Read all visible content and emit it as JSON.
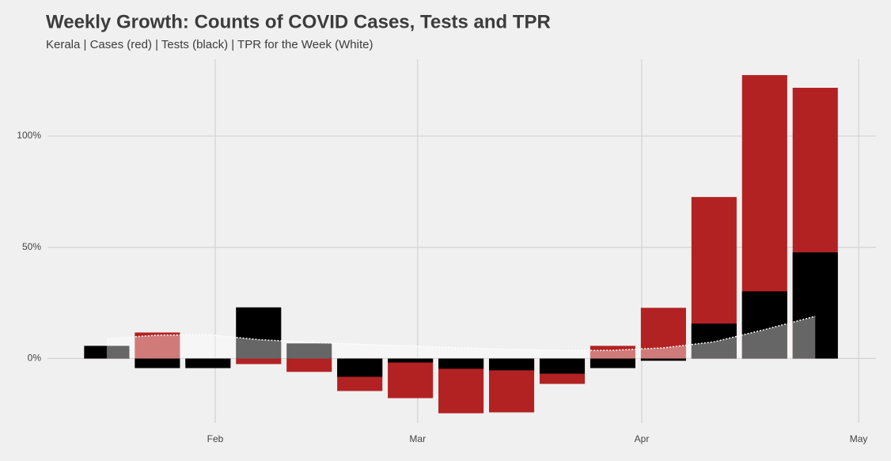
{
  "chart_data": {
    "type": "bar",
    "title": "Weekly Growth: Counts of COVID Cases, Tests and TPR",
    "subtitle": "Kerala  | Cases (red) | Tests (black) | TPR for the Week (White)",
    "x": [
      17,
      24,
      31,
      38,
      45,
      52,
      59,
      66,
      73,
      80,
      87,
      94,
      101,
      108,
      115
    ],
    "xlim": [
      8.8,
      123.4
    ],
    "xticks": [
      {
        "value": 32,
        "label": "Feb"
      },
      {
        "value": 60,
        "label": "Mar"
      },
      {
        "value": 91,
        "label": "Apr"
      },
      {
        "value": 121,
        "label": "May"
      }
    ],
    "ylim": [
      -29,
      134.5
    ],
    "yticks": [
      {
        "value": 0,
        "label": "0%"
      },
      {
        "value": 50,
        "label": "50%"
      },
      {
        "value": 100,
        "label": "100%"
      }
    ],
    "grid": true,
    "series": [
      {
        "color": "#b22222",
        "values": [
          5,
          11.7,
          -3,
          -2.5,
          -6,
          -14.6,
          -17.8,
          -24.6,
          -24.2,
          -11.4,
          5.7,
          22.8,
          72.6,
          127.4,
          121.7
        ]
      },
      {
        "color": "#000000",
        "values": [
          5.7,
          -4.3,
          -4.3,
          23,
          6.8,
          -8.2,
          -1.8,
          -4.6,
          -5.3,
          -6.8,
          -4.3,
          -1,
          15.7,
          30.2,
          47.7
        ]
      },
      {
        "type": "area",
        "color": "#ffffff",
        "values": [
          8.9,
          10.5,
          10.7,
          8.5,
          7.3,
          6.4,
          5.7,
          4.8,
          4.1,
          3.6,
          3.7,
          4.8,
          7.5,
          13,
          19
        ]
      }
    ]
  }
}
